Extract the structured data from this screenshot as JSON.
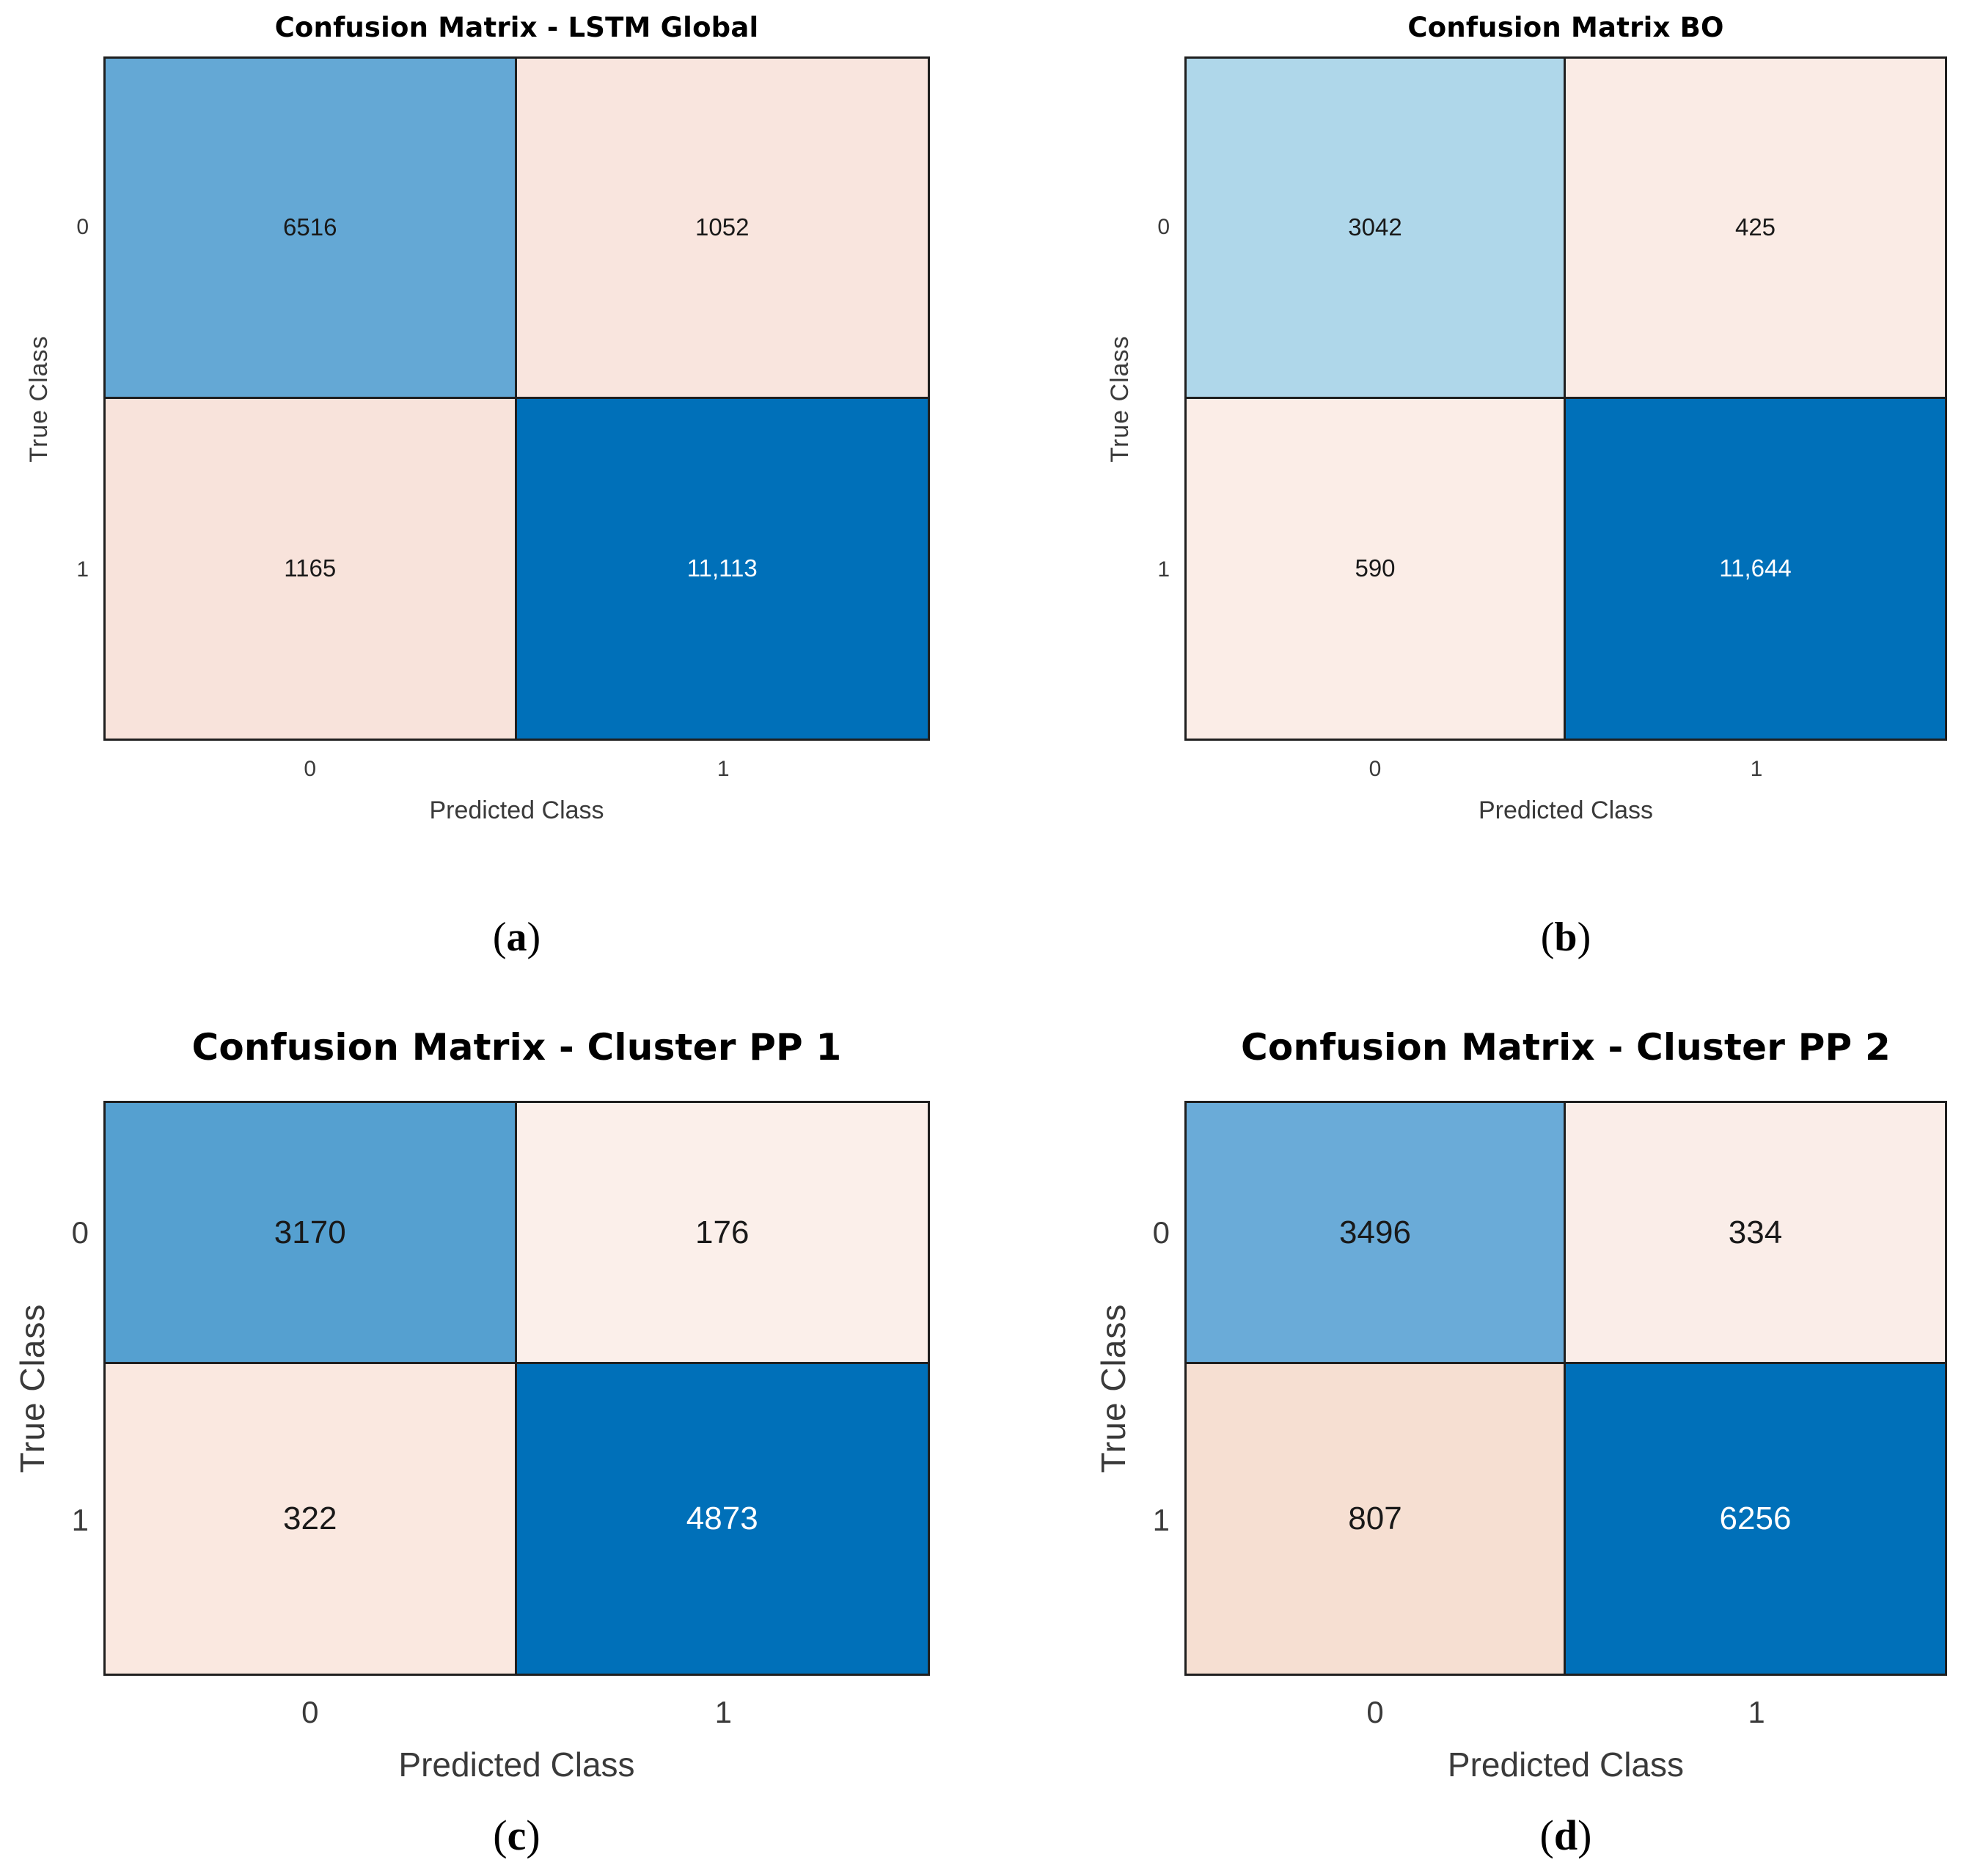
{
  "colors": {
    "background": "#FFFFFF",
    "grid_border": "#1F1F1F",
    "diagonal_dark_blue": "#0070B9",
    "axis_text": "#3A3A3A"
  },
  "chart_data": [
    {
      "type": "heatmap",
      "panel": "a",
      "title": "Confusion Matrix - LSTM Global",
      "xlabel": "Predicted Class",
      "ylabel": "True Class",
      "x_ticks": [
        "0",
        "1"
      ],
      "y_ticks": [
        "0",
        "1"
      ],
      "matrix": [
        [
          6516,
          1052
        ],
        [
          1165,
          11113
        ]
      ],
      "display": [
        [
          "6516",
          "1052"
        ],
        [
          "1165",
          "11,113"
        ]
      ],
      "cell_colors": [
        [
          "#64A8D5",
          "#F9E5DE"
        ],
        [
          "#F8E3DB",
          "#0070B9"
        ]
      ],
      "cell_text_colors": [
        [
          "#191919",
          "#191919"
        ],
        [
          "#191919",
          "#FFFFFF"
        ]
      ],
      "caption_letter": "a"
    },
    {
      "type": "heatmap",
      "panel": "b",
      "title": "Confusion Matrix BO",
      "xlabel": "Predicted Class",
      "ylabel": "True Class",
      "x_ticks": [
        "0",
        "1"
      ],
      "y_ticks": [
        "0",
        "1"
      ],
      "matrix": [
        [
          3042,
          425
        ],
        [
          590,
          11644
        ]
      ],
      "display": [
        [
          "3042",
          "425"
        ],
        [
          "590",
          "11,644"
        ]
      ],
      "cell_colors": [
        [
          "#AFD7EA",
          "#FAEBE5"
        ],
        [
          "#FBEDE7",
          "#0070B9"
        ]
      ],
      "cell_text_colors": [
        [
          "#191919",
          "#191919"
        ],
        [
          "#191919",
          "#FFFFFF"
        ]
      ],
      "caption_letter": "b"
    },
    {
      "type": "heatmap",
      "panel": "c",
      "title": "Confusion Matrix - Cluster PP 1",
      "xlabel": "Predicted Class",
      "ylabel": "True Class",
      "x_ticks": [
        "0",
        "1"
      ],
      "y_ticks": [
        "0",
        "1"
      ],
      "matrix": [
        [
          3170,
          176
        ],
        [
          322,
          4873
        ]
      ],
      "display": [
        [
          "3170",
          "176"
        ],
        [
          "322",
          "4873"
        ]
      ],
      "cell_colors": [
        [
          "#55A0D0",
          "#FBEFEA"
        ],
        [
          "#FAE8E0",
          "#0070B9"
        ]
      ],
      "cell_text_colors": [
        [
          "#191919",
          "#191919"
        ],
        [
          "#191919",
          "#FFFFFF"
        ]
      ],
      "caption_letter": "c"
    },
    {
      "type": "heatmap",
      "panel": "d",
      "title": "Confusion Matrix - Cluster PP 2",
      "xlabel": "Predicted Class",
      "ylabel": "True Class",
      "x_ticks": [
        "0",
        "1"
      ],
      "y_ticks": [
        "0",
        "1"
      ],
      "matrix": [
        [
          3496,
          334
        ],
        [
          807,
          6256
        ]
      ],
      "display": [
        [
          "3496",
          "334"
        ],
        [
          "807",
          "6256"
        ]
      ],
      "cell_colors": [
        [
          "#6AABD8",
          "#FAEDE8"
        ],
        [
          "#F6DFD2",
          "#0070B9"
        ]
      ],
      "cell_text_colors": [
        [
          "#191919",
          "#191919"
        ],
        [
          "#191919",
          "#FFFFFF"
        ]
      ],
      "caption_punct": [
        "(",
        ")"
      ]
    }
  ]
}
